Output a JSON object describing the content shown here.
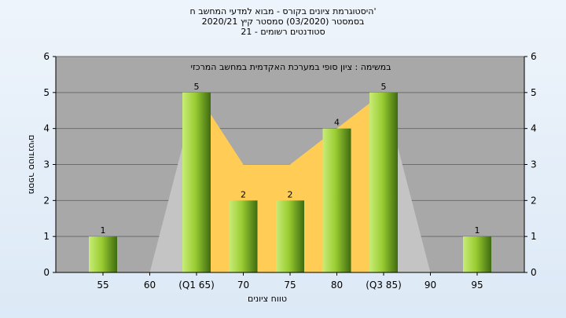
{
  "titles": {
    "line1": "היסטוגרמת ציונים בקורס - מבוא למדעי המחשב ח'",
    "line2": "בסמסטר  (03/2020)  סמסטר קיץ  2020/21",
    "line3": "סטודנטים רשומים - 21"
  },
  "chart_data": {
    "type": "bar",
    "title": "היסטוגרמת ציונים בקורס - מבוא למדעי המחשב ח'",
    "subtitle": "במשימה : ציון סופי במערכת האקדמית במחשב המרכזי",
    "xlabel": "טווח ציונים",
    "ylabel": "מספר סטודנטים",
    "categories": [
      "55",
      "60",
      "(Q1 65)",
      "70",
      "75",
      "80",
      "(Q3 85)",
      "90",
      "95"
    ],
    "values": [
      1,
      0,
      5,
      2,
      2,
      4,
      5,
      0,
      1
    ],
    "data_labels": [
      "1",
      "",
      "5",
      "2",
      "2",
      "4",
      "5",
      "",
      "1"
    ],
    "ylim": [
      0,
      6
    ],
    "yticks": [
      0,
      1,
      2,
      3,
      4,
      5,
      6
    ],
    "box_range": {
      "start": 2,
      "end": 6,
      "values": [
        5,
        3,
        3,
        4,
        5
      ]
    },
    "spread_range": {
      "start": 1,
      "end": 7
    },
    "grid": true,
    "colors": {
      "plot_bg": "#a8a8a8",
      "bar": "#9acd32",
      "box_fill": "#ffcc55",
      "spread_fill": "#c4c4c4"
    }
  }
}
